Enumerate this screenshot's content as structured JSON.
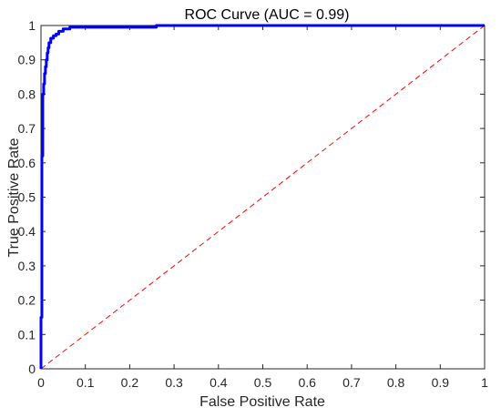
{
  "chart_data": {
    "type": "line",
    "title": "ROC Curve (AUC = 0.99)",
    "xlabel": "False Positive Rate",
    "ylabel": "True Positive Rate",
    "xlim": [
      0,
      1
    ],
    "ylim": [
      0,
      1
    ],
    "xticks": [
      "0",
      "0.1",
      "0.2",
      "0.3",
      "0.4",
      "0.5",
      "0.6",
      "0.7",
      "0.8",
      "0.9",
      "1"
    ],
    "yticks": [
      "0",
      "0.1",
      "0.2",
      "0.3",
      "0.4",
      "0.5",
      "0.6",
      "0.7",
      "0.8",
      "0.9",
      "1"
    ],
    "grid": false,
    "series": [
      {
        "style": "solid",
        "color": "#0000ff",
        "x": [
          0,
          0,
          0.002,
          0.002,
          0.004,
          0.004,
          0.006,
          0.006,
          0.008,
          0.008,
          0.01,
          0.01,
          0.012,
          0.012,
          0.014,
          0.014,
          0.016,
          0.016,
          0.018,
          0.018,
          0.022,
          0.022,
          0.028,
          0.028,
          0.034,
          0.034,
          0.04,
          0.04,
          0.05,
          0.05,
          0.065,
          0.065,
          0.26,
          0.26,
          0.6,
          1
        ],
        "y": [
          0,
          0.15,
          0.15,
          0.62,
          0.62,
          0.8,
          0.8,
          0.83,
          0.83,
          0.86,
          0.86,
          0.88,
          0.88,
          0.9,
          0.9,
          0.92,
          0.92,
          0.935,
          0.935,
          0.95,
          0.95,
          0.963,
          0.963,
          0.97,
          0.97,
          0.975,
          0.975,
          0.983,
          0.983,
          0.99,
          0.99,
          0.995,
          0.995,
          1,
          1,
          1
        ]
      },
      {
        "style": "dashed",
        "color": "#ff0000",
        "x": [
          0,
          1
        ],
        "y": [
          0,
          1
        ]
      }
    ]
  }
}
